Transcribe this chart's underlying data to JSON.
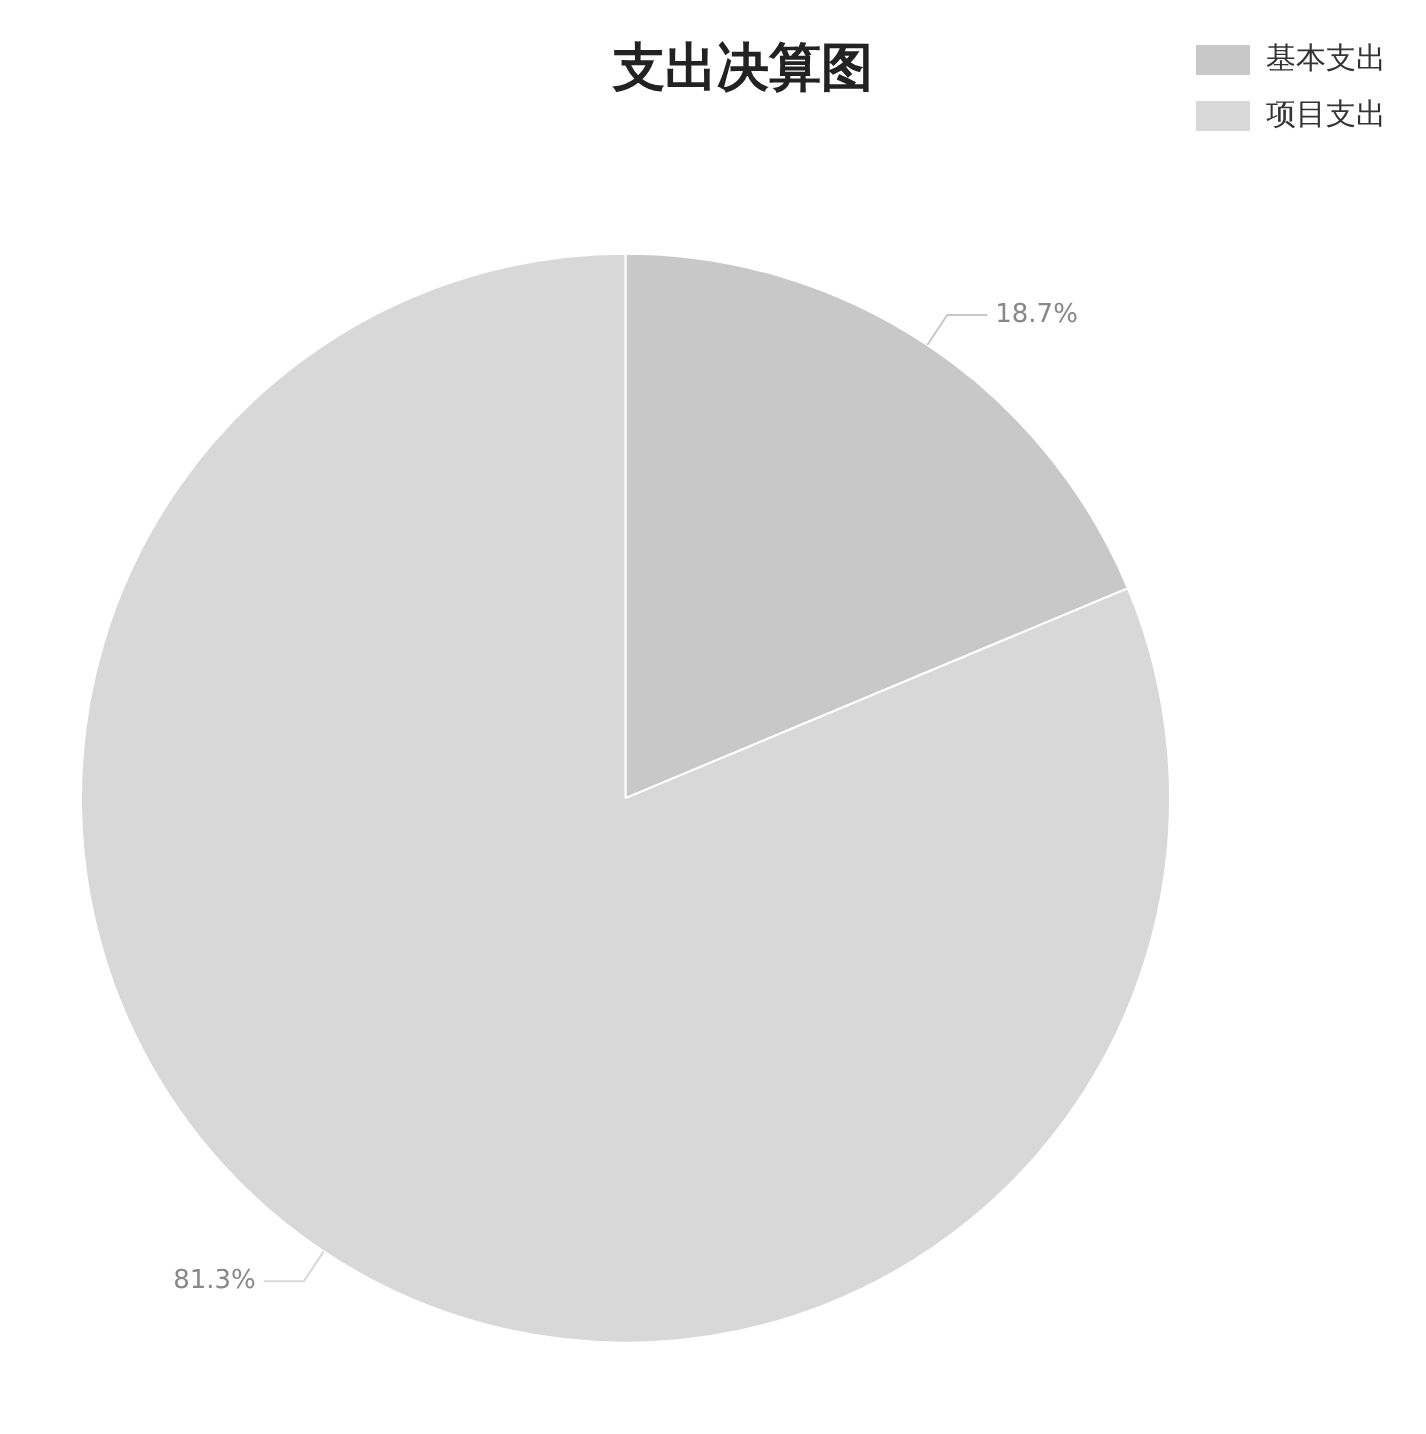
{
  "chart_data": {
    "type": "pie",
    "title": "支出决算图",
    "categories": [
      "基本支出",
      "项目支出"
    ],
    "values": [
      18.7,
      81.3
    ],
    "colors": [
      "#c8c8c8",
      "#d8d8d8"
    ],
    "value_labels": [
      "18.7%",
      "81.3%"
    ],
    "legend": "top right"
  }
}
